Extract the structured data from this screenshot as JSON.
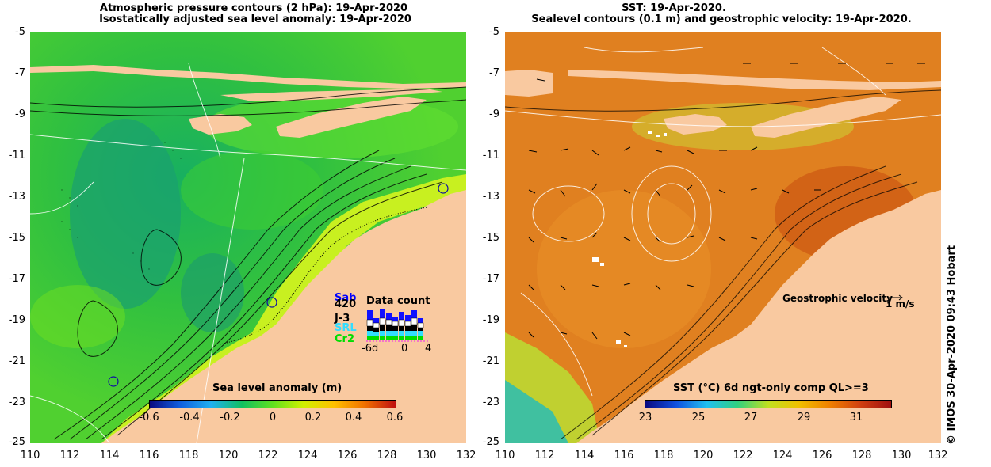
{
  "left_panel": {
    "title_line1": "Atmospheric pressure contours (2 hPa): 19-Apr-2020",
    "title_line2": "Isostatically adjusted sea level anomaly: 19-Apr-2020",
    "colorbar_label": "Sea level anomaly (m)",
    "colorbar_ticks": [
      "-0.6",
      "-0.4",
      "-0.2",
      "0",
      "0.2",
      "0.4",
      "0.6"
    ],
    "data_count_title": "Data count",
    "satellites": [
      {
        "name": "Sab",
        "color": "#0000ff"
      },
      {
        "name": "420",
        "color": "#000000"
      },
      {
        "name": "J-3",
        "color": "#000000"
      },
      {
        "name": "SRL",
        "color": "#33ddff"
      },
      {
        "name": "Cr2",
        "color": "#00dd00"
      }
    ],
    "data_count_x_ticks": [
      "-6d",
      "0",
      "4"
    ]
  },
  "right_panel": {
    "title_line1": "SST: 19-Apr-2020.",
    "title_line2": "Sealevel contours (0.1 m) and geostrophic velocity: 19-Apr-2020.",
    "colorbar_label": "SST (°C) 6d ngt-only comp QL>=3",
    "colorbar_ticks": [
      "23",
      "25",
      "27",
      "29",
      "31"
    ],
    "velocity_label": "Geostrophic velocity",
    "velocity_scale": "1 m/s"
  },
  "axes": {
    "y_ticks": [
      "-5",
      "-7",
      "-9",
      "-11",
      "-13",
      "-15",
      "-17",
      "-19",
      "-21",
      "-23",
      "-25"
    ],
    "x_ticks": [
      "110",
      "112",
      "114",
      "116",
      "118",
      "120",
      "122",
      "124",
      "126",
      "128",
      "130",
      "132"
    ]
  },
  "credit": "© IMOS 30-Apr-2020 09:43 Hobart",
  "colors": {
    "land": "#f9c9a0",
    "sla_ramp": [
      "#0a0a80",
      "#1060e0",
      "#20b0f0",
      "#10c060",
      "#60e020",
      "#d0f000",
      "#ffc000",
      "#f07000",
      "#c01010"
    ],
    "sst_ramp": [
      "#0a0a80",
      "#1050e0",
      "#20c0f0",
      "#30d080",
      "#c0e020",
      "#f0c000",
      "#f08000",
      "#d04010",
      "#a01010"
    ]
  }
}
